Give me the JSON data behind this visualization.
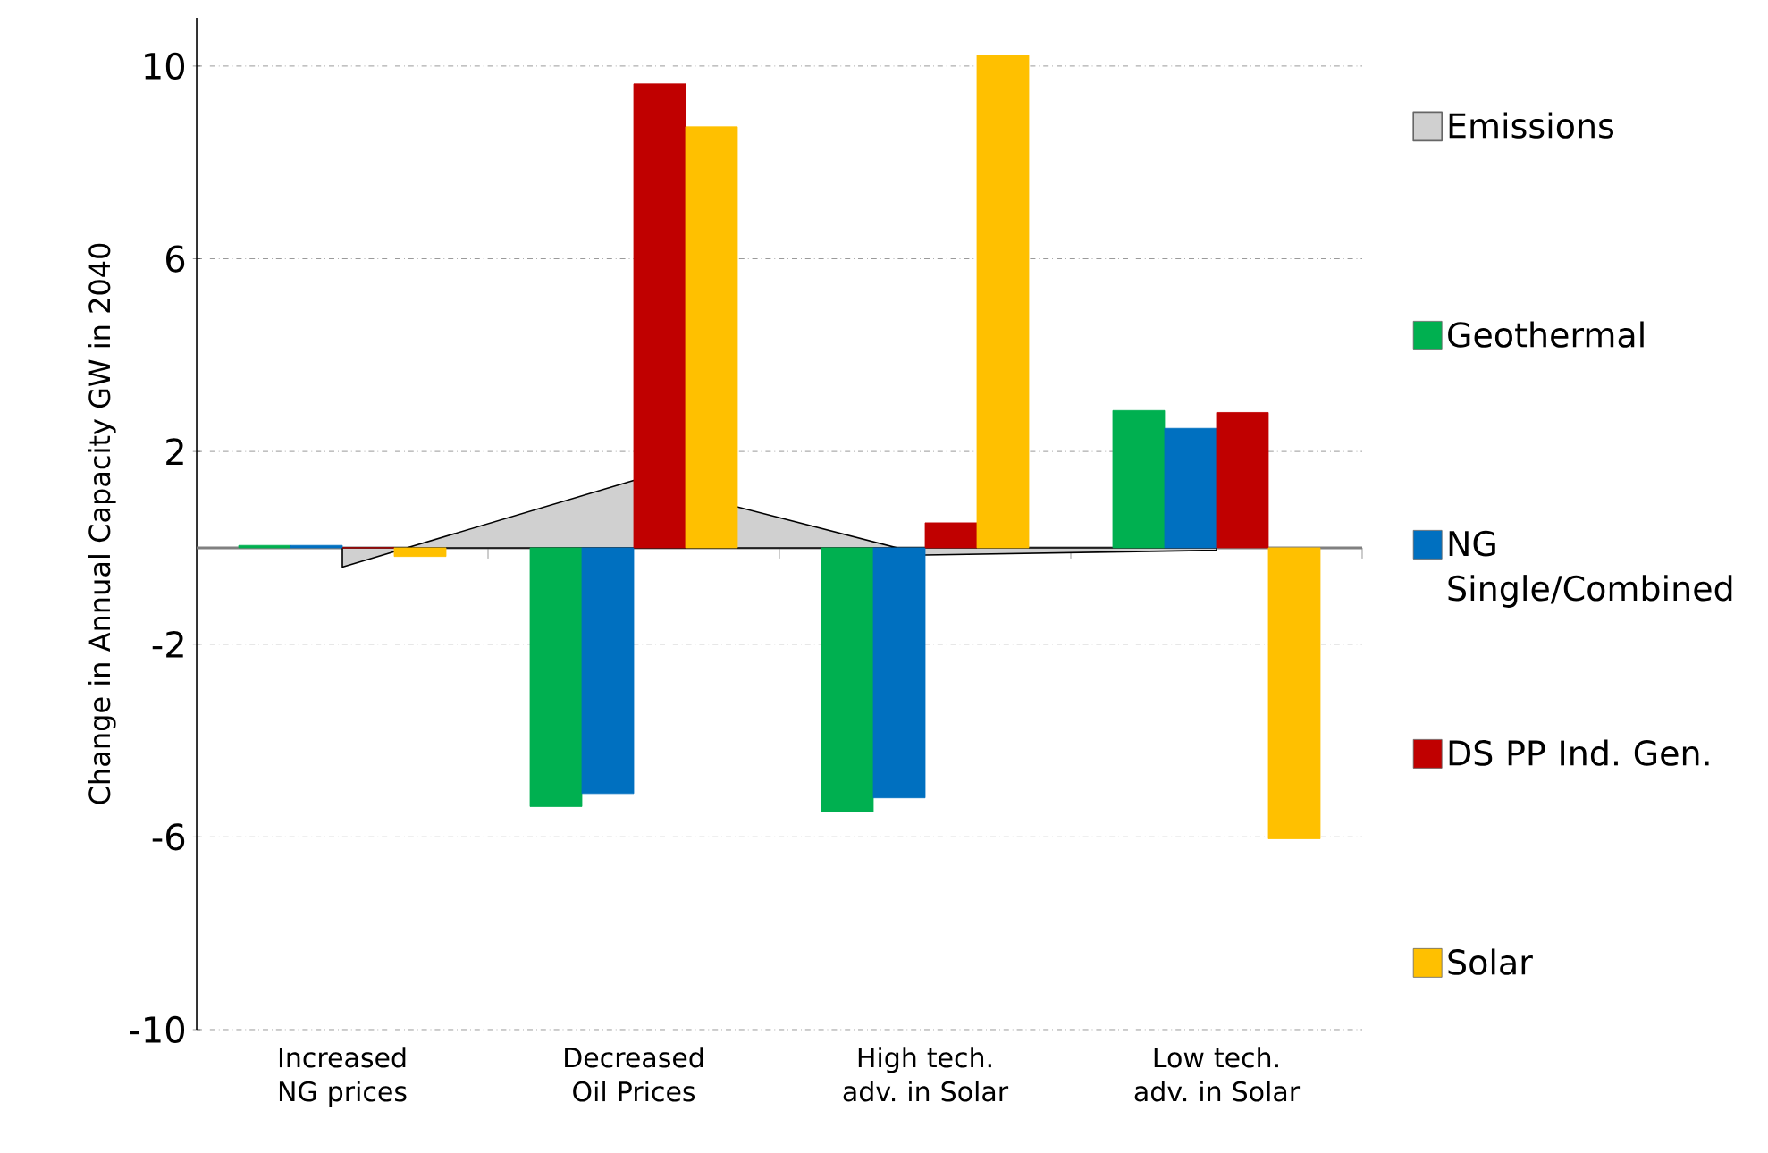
{
  "chart_data": {
    "type": "bar",
    "ylabel": "Change in Annual Capacity GW in 2040",
    "categories": [
      "Increased NG prices",
      "Decreased Oil Prices",
      "High tech. adv. in Solar",
      "Low tech. adv. in Solar"
    ],
    "series": [
      {
        "name": "Emissions",
        "type": "area",
        "color": "#d0d0d0",
        "values": [
          -0.4,
          1.4,
          -0.15,
          -0.05
        ]
      },
      {
        "name": "Geothermal",
        "color": "#00b050",
        "values": [
          0.05,
          -5.37,
          -5.48,
          2.85
        ]
      },
      {
        "name": "NG Single/Combined",
        "color": "#0070c0",
        "values": [
          0.05,
          -5.1,
          -5.19,
          2.48
        ]
      },
      {
        "name": "DS PP Ind. Gen.",
        "color": "#c00000",
        "values": [
          0,
          9.63,
          0.52,
          2.81
        ]
      },
      {
        "name": "Solar",
        "color": "#ffc000",
        "values": [
          -0.18,
          8.74,
          10.22,
          -6.04
        ]
      }
    ],
    "ylim": [
      -10,
      11
    ],
    "yticks": [
      -10,
      -6,
      -2,
      2,
      6,
      10
    ],
    "grid": "y",
    "legend": "right"
  }
}
